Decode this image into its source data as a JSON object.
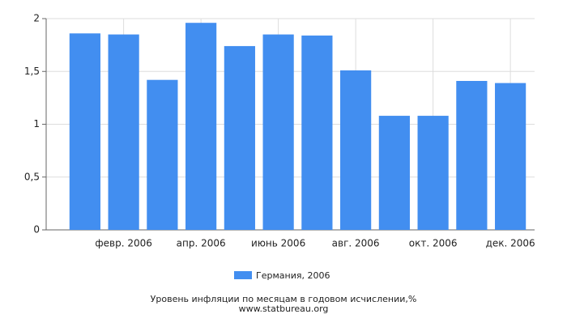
{
  "chart_data": {
    "type": "bar",
    "title": "Уровень инфляции по месяцам в годовом исчислении,%",
    "subtitle": "www.statbureau.org",
    "categories": [
      null,
      "февр. 2006",
      null,
      "апр. 2006",
      null,
      "июнь 2006",
      null,
      "авг. 2006",
      null,
      "окт. 2006",
      null,
      "дек. 2006"
    ],
    "series": [
      {
        "name": "Германия, 2006",
        "color": "#428ef0",
        "values": [
          1.86,
          1.85,
          1.42,
          1.96,
          1.74,
          1.85,
          1.84,
          1.51,
          1.08,
          1.08,
          1.41,
          1.39
        ]
      }
    ],
    "ylim": [
      0,
      2
    ],
    "yticks": [
      0,
      {
        "value": 0.5,
        "label": "0,5"
      },
      1,
      {
        "value": 1.5,
        "label": "1,5"
      },
      2
    ],
    "grid": true,
    "legend": "bottom"
  }
}
